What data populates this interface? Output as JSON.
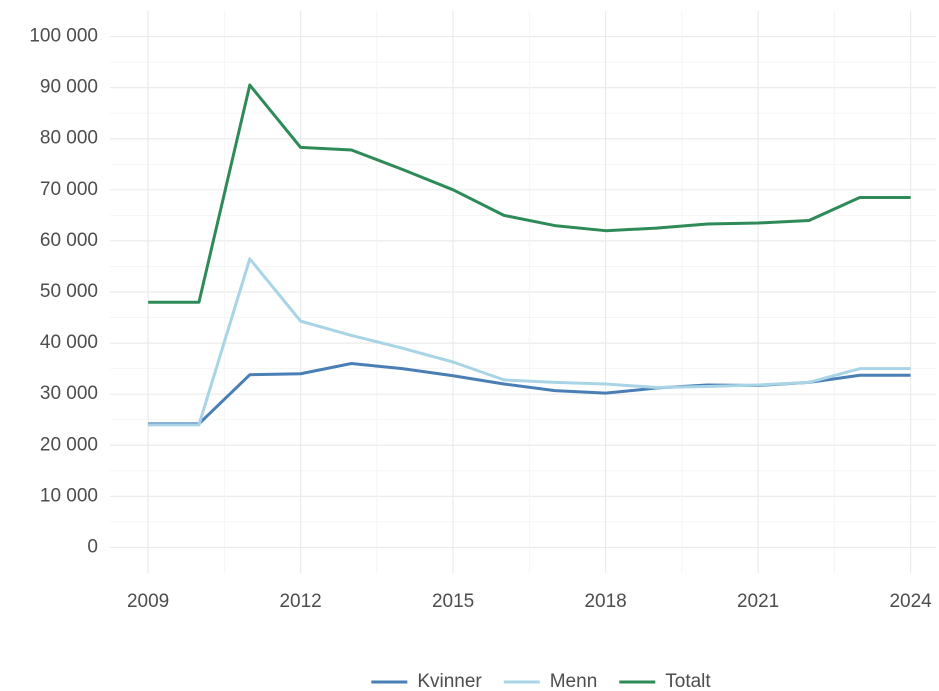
{
  "chart_data": {
    "type": "line",
    "x": [
      2009,
      2010,
      2011,
      2012,
      2013,
      2014,
      2015,
      2016,
      2017,
      2018,
      2019,
      2020,
      2021,
      2022,
      2023,
      2024
    ],
    "series": [
      {
        "name": "Kvinner",
        "color": "#4a7fb5",
        "values": [
          24200,
          24200,
          33800,
          34000,
          36000,
          35000,
          33600,
          32000,
          30700,
          30200,
          31200,
          31800,
          31700,
          32300,
          33700,
          33700
        ]
      },
      {
        "name": "Menn",
        "color": "#a8d4e6",
        "values": [
          24000,
          24000,
          56500,
          44300,
          41500,
          39000,
          36300,
          32800,
          32300,
          32000,
          31300,
          31500,
          31800,
          32300,
          35000,
          35000
        ]
      },
      {
        "name": "Totalt",
        "color": "#2e8b57",
        "values": [
          48000,
          48000,
          90500,
          78300,
          77800,
          74000,
          70000,
          65000,
          63000,
          62000,
          62500,
          63300,
          63500,
          64000,
          68500,
          68500
        ]
      }
    ],
    "xlim": [
      2008.25,
      2024.5
    ],
    "xticks": [
      2009,
      2012,
      2015,
      2018,
      2021,
      2024
    ],
    "ylim": [
      -5000,
      105000
    ],
    "yticks": [
      0,
      {
        "value": 10000,
        "label": "10 000"
      },
      {
        "value": 20000,
        "label": "20 000"
      },
      {
        "value": 30000,
        "label": "30 000"
      },
      {
        "value": 40000,
        "label": "40 000"
      },
      {
        "value": 50000,
        "label": "50 000"
      },
      {
        "value": 60000,
        "label": "60 000"
      },
      {
        "value": 70000,
        "label": "70 000"
      },
      {
        "value": 80000,
        "label": "80 000"
      },
      {
        "value": 90000,
        "label": "90 000"
      },
      {
        "value": 100000,
        "label": "100 000"
      }
    ],
    "grid": true,
    "minor_grid": true,
    "legend": "bottom"
  }
}
